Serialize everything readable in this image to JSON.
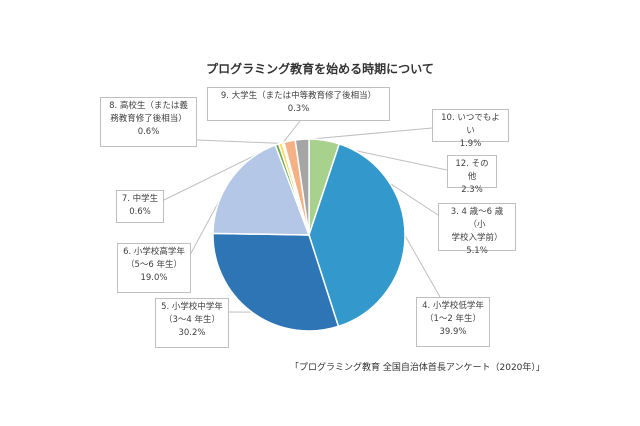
{
  "chart_data": {
    "type": "pie",
    "title": "プログラミング教育を始める時期について",
    "source": "「プログラミング教育 全国自治体首長アンケート（2020年）」",
    "start_angle": "12 o'clock, clockwise",
    "slices": [
      {
        "id": 3,
        "label": "3. 4 歳〜6 歳（小学校入学前）",
        "line1": "3. 4 歳〜6 歳（小",
        "line2": "学校入学前）",
        "value": 5.1,
        "value_label": "5.1%",
        "color": "#a9d18e"
      },
      {
        "id": 4,
        "label": "4. 小学校低学年（1〜2 年生）",
        "line1": "4. 小学校低学年",
        "line2": "（1〜2 年生）",
        "value": 39.9,
        "value_label": "39.9%",
        "color": "#3399cc"
      },
      {
        "id": 5,
        "label": "5. 小学校中学年（3〜4 年生）",
        "line1": "5. 小学校中学年",
        "line2": "（3〜4 年生）",
        "value": 30.2,
        "value_label": "30.2%",
        "color": "#2e75b6"
      },
      {
        "id": 6,
        "label": "6. 小学校高学年（5〜6 年生）",
        "line1": "6. 小学校高学年",
        "line2": "（5〜6 年生）",
        "value": 19.0,
        "value_label": "19.0%",
        "color": "#b4c7e7"
      },
      {
        "id": 7,
        "label": "7. 中学生",
        "line1": "7. 中学生",
        "line2": "",
        "value": 0.6,
        "value_label": "0.6%",
        "color": "#70ad47"
      },
      {
        "id": 8,
        "label": "8. 高校生（または義務教育修了後相当）",
        "line1": "8. 高校生（または義",
        "line2": "務教育修了後相当）",
        "value": 0.6,
        "value_label": "0.6%",
        "color": "#ffd966"
      },
      {
        "id": 9,
        "label": "9. 大学生（または中等教育修了後相当）",
        "line1": "9. 大学生（または中等教育修了後相当）",
        "line2": "",
        "value": 0.3,
        "value_label": "0.3%",
        "color": "#fbe5d6"
      },
      {
        "id": 10,
        "label": "10. いつでもよい",
        "line1": "10. いつでもよい",
        "line2": "",
        "value": 1.9,
        "value_label": "1.9%",
        "color": "#f4b183"
      },
      {
        "id": 12,
        "label": "12. その他",
        "line1": "12. その他",
        "line2": "",
        "value": 2.3,
        "value_label": "2.3%",
        "color": "#a5a5a5"
      }
    ],
    "legend": "none (callout labels)"
  }
}
